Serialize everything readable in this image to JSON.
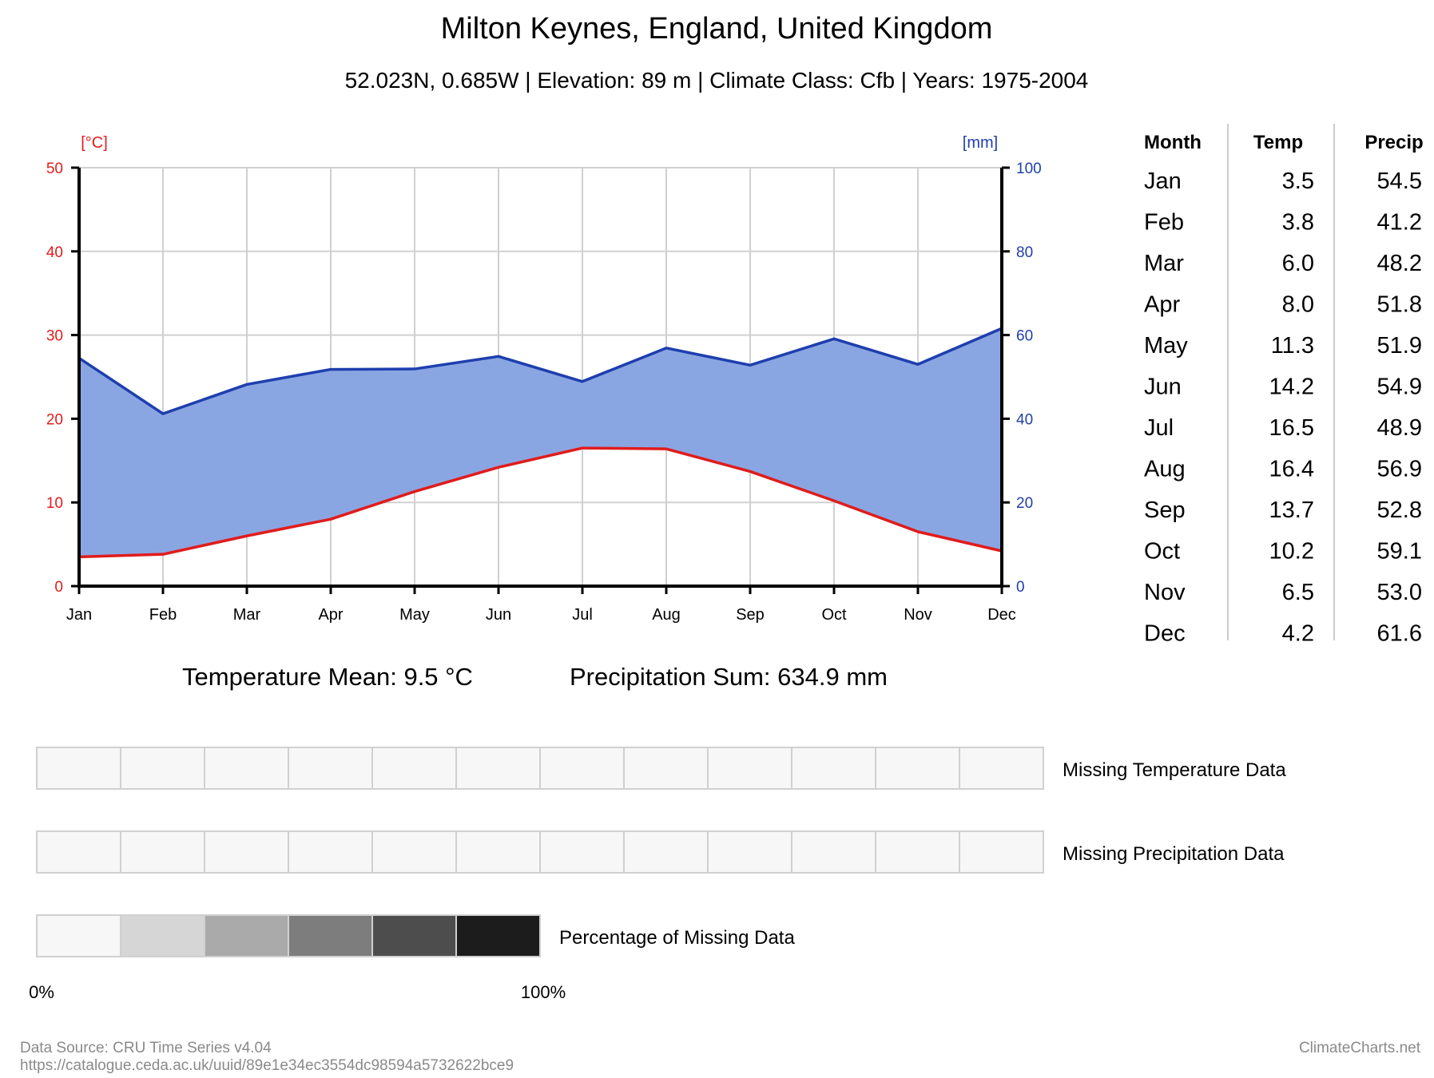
{
  "title": "Milton Keynes, England, United Kingdom",
  "subtitle": "52.023N, 0.685W | Elevation: 89 m | Climate Class: Cfb | Years: 1975-2004",
  "colors": {
    "temp": "#e01c1c",
    "precip": "#1e3fae",
    "precip_fill": "#8aa6e2",
    "grid": "#d0d0d0"
  },
  "chart_data": {
    "type": "line",
    "categories": [
      "Jan",
      "Feb",
      "Mar",
      "Apr",
      "May",
      "Jun",
      "Jul",
      "Aug",
      "Sep",
      "Oct",
      "Nov",
      "Dec"
    ],
    "series": [
      {
        "name": "Temp",
        "unit": "°C",
        "axis": "left",
        "values": [
          3.5,
          3.8,
          6.0,
          8.0,
          11.3,
          14.2,
          16.5,
          16.4,
          13.7,
          10.2,
          6.5,
          4.2
        ]
      },
      {
        "name": "Precip",
        "unit": "mm",
        "axis": "right",
        "values": [
          54.5,
          41.2,
          48.2,
          51.8,
          51.9,
          54.9,
          48.9,
          56.9,
          52.8,
          59.1,
          53.0,
          61.6
        ]
      }
    ],
    "y_left": {
      "label": "[°C]",
      "lim": [
        0,
        50
      ],
      "ticks": [
        "0",
        "10",
        "20",
        "30",
        "40",
        "50"
      ]
    },
    "y_right": {
      "label": "[mm]",
      "lim": [
        0,
        100
      ],
      "ticks": [
        "0",
        "20",
        "40",
        "60",
        "80",
        "100"
      ]
    },
    "grid": true,
    "fill": "area between precipitation and temperature lines"
  },
  "table": {
    "headers": [
      "Month",
      "Temp",
      "Precip"
    ],
    "rows": [
      [
        "Jan",
        "3.5",
        "54.5"
      ],
      [
        "Feb",
        "3.8",
        "41.2"
      ],
      [
        "Mar",
        "6.0",
        "48.2"
      ],
      [
        "Apr",
        "8.0",
        "51.8"
      ],
      [
        "May",
        "11.3",
        "51.9"
      ],
      [
        "Jun",
        "14.2",
        "54.9"
      ],
      [
        "Jul",
        "16.5",
        "48.9"
      ],
      [
        "Aug",
        "16.4",
        "56.9"
      ],
      [
        "Sep",
        "13.7",
        "52.8"
      ],
      [
        "Oct",
        "10.2",
        "59.1"
      ],
      [
        "Nov",
        "6.5",
        "53.0"
      ],
      [
        "Dec",
        "4.2",
        "61.6"
      ]
    ]
  },
  "summary": {
    "temp_mean": "Temperature Mean: 9.5 °C",
    "precip_sum": "Precipitation Sum: 634.9 mm"
  },
  "missing": {
    "temp_label": "Missing Temperature Data",
    "precip_label": "Missing Precipitation Data",
    "percentage_label": "Percentage of Missing Data",
    "temp_values": [
      0,
      0,
      0,
      0,
      0,
      0,
      0,
      0,
      0,
      0,
      0,
      0
    ],
    "precip_values": [
      0,
      0,
      0,
      0,
      0,
      0,
      0,
      0,
      0,
      0,
      0,
      0
    ],
    "scale_colors": [
      "#f7f7f7",
      "#d6d6d6",
      "#aaaaaa",
      "#7d7d7d",
      "#4d4d4d",
      "#1c1c1c"
    ],
    "scale_min": "0%",
    "scale_max": "100%"
  },
  "footer": {
    "source": "Data Source: CRU Time Series v4.04",
    "url": "https://catalogue.ceda.ac.uk/uuid/89e1e34ec3554dc98594a5732622bce9",
    "brand": "ClimateCharts.net"
  }
}
